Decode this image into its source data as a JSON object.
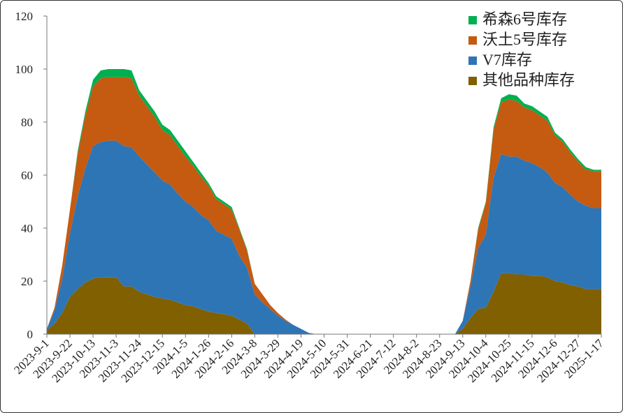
{
  "chart_data": {
    "type": "stacked_area",
    "categories": [
      "2023-9-1",
      null,
      null,
      "2023-9-22",
      null,
      null,
      "2023-10-13",
      null,
      null,
      "2023-11-3",
      null,
      null,
      "2023-11-24",
      null,
      null,
      "2023-12-15",
      null,
      null,
      "2024-1-5",
      null,
      null,
      "2024-1-26",
      null,
      null,
      "2024-2-16",
      null,
      null,
      "2024-3-8",
      null,
      null,
      "2024-3-29",
      null,
      null,
      "2024-4-19",
      null,
      null,
      "2024-5-10",
      null,
      null,
      "2024-5-31",
      null,
      null,
      "2024-6-21",
      null,
      null,
      "2024-7-12",
      null,
      null,
      "2024-8-2",
      null,
      null,
      "2024-8-23",
      null,
      null,
      "2024-9-13",
      null,
      null,
      "2024-10-4",
      null,
      null,
      "2024-10-25",
      null,
      null,
      "2024-11-15",
      null,
      null,
      "2024-12-6",
      null,
      null,
      "2024-12-27",
      null,
      null,
      "2025-1-17"
    ],
    "series": [
      {
        "name": "其他品种库存",
        "color": "#806000",
        "values": [
          1.5,
          4,
          8,
          14,
          17,
          19.5,
          21,
          21.5,
          21.5,
          21.5,
          18,
          18,
          16,
          15,
          14,
          13.5,
          13,
          12,
          11,
          10.5,
          9.5,
          8.5,
          8,
          7.5,
          7,
          5.5,
          4,
          0,
          0,
          0,
          0,
          0,
          0,
          0,
          0,
          0,
          0,
          0,
          0,
          0,
          0,
          0,
          0,
          0,
          0,
          0,
          0,
          0,
          0,
          0,
          0,
          0,
          0,
          0,
          2,
          6,
          9.5,
          10,
          16,
          23,
          23,
          22.5,
          22.5,
          22,
          22,
          21.5,
          20,
          19.5,
          18.5,
          18,
          17,
          17,
          17
        ]
      },
      {
        "name": "V7库存",
        "color": "#2e75b6",
        "values": [
          0.5,
          5,
          13,
          24,
          35,
          43,
          50,
          51,
          51.5,
          51.5,
          53,
          52.5,
          51,
          49,
          47,
          44.5,
          43.5,
          41,
          39,
          37.5,
          35.5,
          34.5,
          31,
          30,
          29,
          24,
          21,
          15,
          12,
          9.5,
          7,
          5,
          3.5,
          2,
          0.5,
          0,
          0,
          0,
          0,
          0,
          0,
          0,
          0,
          0,
          0,
          0,
          0,
          0,
          0,
          0,
          0,
          0,
          0,
          0,
          3,
          12,
          23,
          27.5,
          43,
          45,
          44,
          44.5,
          43,
          42.5,
          41,
          39.5,
          37,
          36,
          34,
          32,
          31.5,
          30.5,
          30.5
        ]
      },
      {
        "name": "沃土5号库存",
        "color": "#c55a11",
        "values": [
          0,
          1,
          5,
          9,
          16,
          20,
          22.5,
          24,
          24,
          24,
          26,
          26,
          23,
          22,
          21,
          19,
          18.5,
          18,
          17,
          15.5,
          14.5,
          13,
          12,
          11.5,
          11,
          10,
          6.5,
          4,
          3,
          1.5,
          1,
          0.5,
          0,
          0,
          0,
          0,
          0,
          0,
          0,
          0,
          0,
          0,
          0,
          0,
          0,
          0,
          0,
          0,
          0,
          0,
          0,
          0,
          0,
          0,
          0,
          2,
          7,
          12,
          18,
          19.5,
          21.5,
          21,
          20,
          20,
          19.5,
          19.5,
          18,
          17,
          16,
          15,
          13.5,
          14,
          14
        ]
      },
      {
        "name": "希森6号库存",
        "color": "#00b050",
        "values": [
          0,
          0,
          0,
          0,
          1,
          1.5,
          2.5,
          3,
          3,
          3,
          3,
          3,
          2,
          2,
          2,
          2,
          2,
          2,
          2,
          1.5,
          1.5,
          1,
          1,
          1,
          1,
          0.5,
          0.5,
          0,
          0,
          0,
          0,
          0,
          0,
          0,
          0,
          0,
          0,
          0,
          0,
          0,
          0,
          0,
          0,
          0,
          0,
          0,
          0,
          0,
          0,
          0,
          0,
          0,
          0,
          0,
          0,
          0,
          0.5,
          0.5,
          1,
          1.5,
          2,
          2,
          1.5,
          1.5,
          1.5,
          1.5,
          1,
          1,
          1,
          1,
          1,
          0.5,
          0.5
        ]
      }
    ],
    "ylim": [
      0,
      120
    ],
    "yticks": [
      0,
      20,
      40,
      60,
      80,
      100,
      120
    ],
    "grid": false,
    "legend": "top-right"
  }
}
